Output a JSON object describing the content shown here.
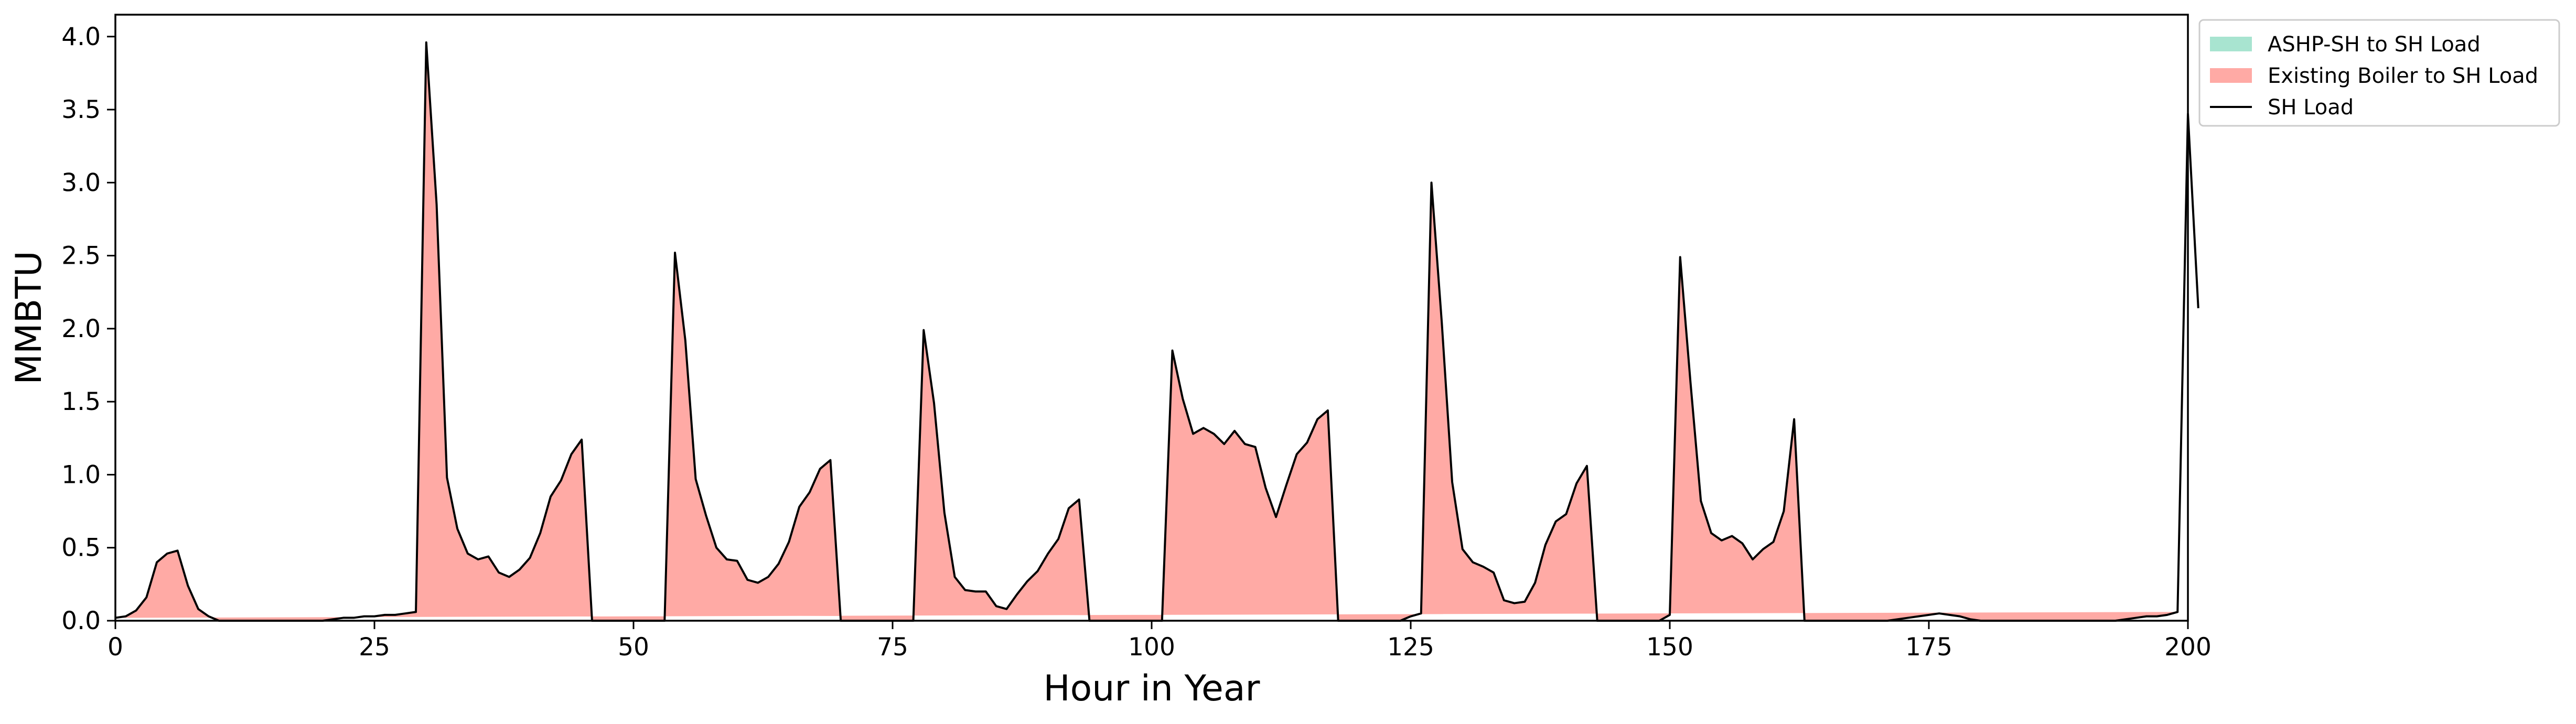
{
  "chart_data": {
    "type": "area",
    "title": "",
    "xlabel": "Hour in Year",
    "ylabel": "MMBTU",
    "xlim": [
      0,
      200
    ],
    "ylim": [
      0,
      4.15
    ],
    "xticks": [
      0,
      25,
      50,
      75,
      100,
      125,
      150,
      175,
      200
    ],
    "yticks": [
      0.0,
      0.5,
      1.0,
      1.5,
      2.0,
      2.5,
      3.0,
      3.5,
      4.0
    ],
    "ytick_labels": [
      "0.0",
      "0.5",
      "1.0",
      "1.5",
      "2.0",
      "2.5",
      "3.0",
      "3.5",
      "4.0"
    ],
    "grid": false,
    "legend_position": "outside-top-right",
    "colors": {
      "ashp": "#a8e4d0",
      "boiler": "#ffaaa5",
      "load": "#000000"
    },
    "legend": [
      {
        "label": "ASHP-SH to SH Load",
        "kind": "patch",
        "color": "#a8e4d0"
      },
      {
        "label": "Existing Boiler to SH Load",
        "kind": "patch",
        "color": "#ffaaa5"
      },
      {
        "label": "SH Load",
        "kind": "line",
        "color": "#000000"
      }
    ],
    "x_start": 0,
    "x_step": 1,
    "series": [
      {
        "name": "ASHP-SH to SH Load",
        "values": [
          0,
          0,
          0,
          0,
          0,
          0,
          0,
          0,
          0,
          0,
          0,
          0,
          0,
          0,
          0,
          0,
          0,
          0,
          0,
          0,
          0,
          0,
          0,
          0,
          0,
          0,
          0,
          0,
          0,
          0,
          0,
          0,
          0,
          0,
          0,
          0,
          0,
          0,
          0,
          0,
          0,
          0,
          0,
          0,
          0,
          0,
          0,
          0,
          0,
          0,
          0,
          0,
          0,
          0,
          0,
          0,
          0,
          0,
          0,
          0,
          0,
          0,
          0,
          0,
          0,
          0,
          0,
          0,
          0,
          0,
          0,
          0,
          0,
          0,
          0,
          0,
          0,
          0,
          0,
          0,
          0,
          0,
          0,
          0,
          0,
          0,
          0,
          0,
          0,
          0,
          0,
          0,
          0,
          0,
          0,
          0,
          0,
          0,
          0,
          0,
          0,
          0,
          0,
          0,
          0,
          0,
          0,
          0,
          0,
          0,
          0,
          0,
          0,
          0,
          0,
          0,
          0,
          0,
          0,
          0,
          0,
          0,
          0,
          0,
          0,
          0,
          0,
          0,
          0,
          0,
          0,
          0,
          0,
          0,
          0,
          0,
          0,
          0,
          0,
          0,
          0,
          0,
          0,
          0,
          0,
          0,
          0,
          0,
          0,
          0,
          0,
          0,
          0,
          0,
          0,
          0,
          0,
          0,
          0,
          0,
          0,
          0,
          0,
          0,
          0,
          0,
          0,
          0,
          0,
          0,
          0,
          0,
          0,
          0,
          0,
          0,
          0,
          0,
          0,
          0,
          0,
          0,
          0,
          0,
          0,
          0,
          0,
          0,
          0,
          0,
          0,
          0,
          0,
          0,
          0,
          0,
          0,
          0,
          0,
          0
        ]
      },
      {
        "name": "Existing Boiler to SH Load",
        "values": [
          0.02,
          0.03,
          0.07,
          0.16,
          0.4,
          0.46,
          0.48,
          0.24,
          0.08,
          0.03,
          0,
          0,
          0,
          0,
          0,
          0,
          0,
          0,
          0,
          0,
          0,
          0.01,
          0.02,
          0.02,
          0.03,
          0.03,
          0.04,
          0.04,
          0.05,
          0.06,
          3.96,
          2.85,
          0.98,
          0.63,
          0.46,
          0.42,
          0.44,
          0.33,
          0.3,
          0.35,
          0.43,
          0.6,
          0.85,
          0.96,
          1.14,
          1.24,
          0,
          0,
          0,
          0,
          0,
          0,
          0,
          0,
          2.52,
          1.92,
          0.97,
          0.72,
          0.5,
          0.42,
          0.41,
          0.28,
          0.26,
          0.3,
          0.39,
          0.54,
          0.78,
          0.88,
          1.04,
          1.1,
          0,
          0,
          0,
          0,
          0,
          0,
          0,
          0,
          1.99,
          1.49,
          0.74,
          0.3,
          0.21,
          0.2,
          0.2,
          0.1,
          0.08,
          0.18,
          0.27,
          0.34,
          0.46,
          0.56,
          0.77,
          0.83,
          0,
          0,
          0,
          0,
          0,
          0,
          0,
          0,
          1.85,
          1.52,
          1.28,
          1.32,
          1.28,
          1.21,
          1.3,
          1.21,
          1.19,
          0.91,
          0.71,
          0.93,
          1.14,
          1.22,
          1.38,
          1.44,
          0,
          0,
          0,
          0,
          0,
          0,
          0,
          0.03,
          0.05,
          3.0,
          2.04,
          0.95,
          0.49,
          0.4,
          0.37,
          0.33,
          0.14,
          0.12,
          0.13,
          0.26,
          0.52,
          0.68,
          0.73,
          0.94,
          1.06,
          0,
          0,
          0,
          0,
          0,
          0,
          0,
          0.04,
          2.49,
          1.63,
          0.82,
          0.6,
          0.55,
          0.58,
          0.53,
          0.42,
          0.49,
          0.54,
          0.75,
          1.38,
          0,
          0,
          0,
          0,
          0,
          0,
          0,
          0,
          0,
          0.01,
          0.02,
          0.03,
          0.04,
          0.05,
          0.04,
          0.03,
          0.01,
          0,
          0,
          0,
          0,
          0,
          0,
          0,
          0,
          0,
          0,
          0,
          0,
          0,
          0,
          0.01,
          0.02,
          0.03,
          0.03,
          0.04,
          0.06,
          3.47,
          2.14
        ]
      },
      {
        "name": "SH Load",
        "values": [
          0.02,
          0.03,
          0.07,
          0.16,
          0.4,
          0.46,
          0.48,
          0.24,
          0.08,
          0.03,
          0,
          0,
          0,
          0,
          0,
          0,
          0,
          0,
          0,
          0,
          0,
          0.01,
          0.02,
          0.02,
          0.03,
          0.03,
          0.04,
          0.04,
          0.05,
          0.06,
          3.96,
          2.85,
          0.98,
          0.63,
          0.46,
          0.42,
          0.44,
          0.33,
          0.3,
          0.35,
          0.43,
          0.6,
          0.85,
          0.96,
          1.14,
          1.24,
          0,
          0,
          0,
          0,
          0,
          0,
          0,
          0,
          2.52,
          1.92,
          0.97,
          0.72,
          0.5,
          0.42,
          0.41,
          0.28,
          0.26,
          0.3,
          0.39,
          0.54,
          0.78,
          0.88,
          1.04,
          1.1,
          0,
          0,
          0,
          0,
          0,
          0,
          0,
          0,
          1.99,
          1.49,
          0.74,
          0.3,
          0.21,
          0.2,
          0.2,
          0.1,
          0.08,
          0.18,
          0.27,
          0.34,
          0.46,
          0.56,
          0.77,
          0.83,
          0,
          0,
          0,
          0,
          0,
          0,
          0,
          0,
          1.85,
          1.52,
          1.28,
          1.32,
          1.28,
          1.21,
          1.3,
          1.21,
          1.19,
          0.91,
          0.71,
          0.93,
          1.14,
          1.22,
          1.38,
          1.44,
          0,
          0,
          0,
          0,
          0,
          0,
          0,
          0.03,
          0.05,
          3.0,
          2.04,
          0.95,
          0.49,
          0.4,
          0.37,
          0.33,
          0.14,
          0.12,
          0.13,
          0.26,
          0.52,
          0.68,
          0.73,
          0.94,
          1.06,
          0,
          0,
          0,
          0,
          0,
          0,
          0,
          0.04,
          2.49,
          1.63,
          0.82,
          0.6,
          0.55,
          0.58,
          0.53,
          0.42,
          0.49,
          0.54,
          0.75,
          1.38,
          0,
          0,
          0,
          0,
          0,
          0,
          0,
          0,
          0,
          0.01,
          0.02,
          0.03,
          0.04,
          0.05,
          0.04,
          0.03,
          0.01,
          0,
          0,
          0,
          0,
          0,
          0,
          0,
          0,
          0,
          0,
          0,
          0,
          0,
          0,
          0.01,
          0.02,
          0.03,
          0.03,
          0.04,
          0.06,
          3.47,
          2.14
        ]
      }
    ]
  }
}
